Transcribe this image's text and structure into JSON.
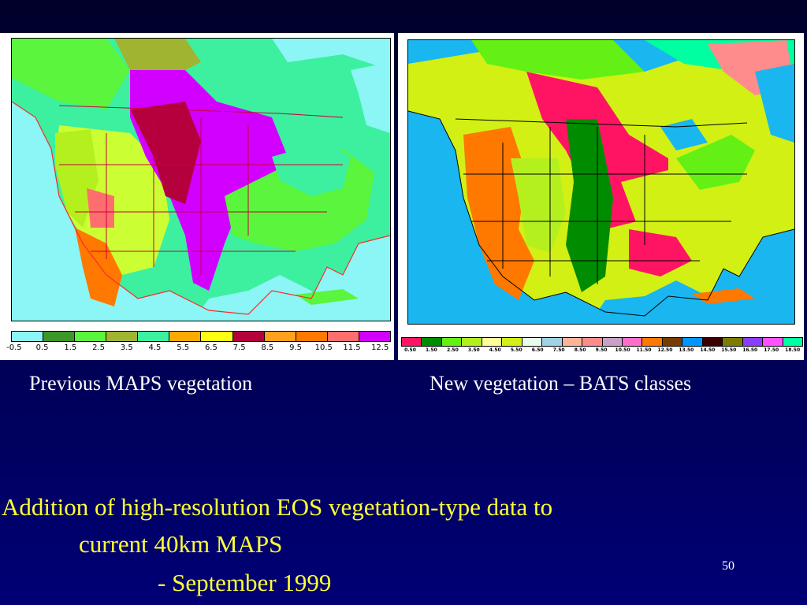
{
  "left_map": {
    "caption": "Previous MAPS vegetation",
    "legend_colors": [
      "#8cf5f5",
      "#3c9628",
      "#5af53c",
      "#a0b432",
      "#3cf0a0",
      "#faaa00",
      "#ffff14",
      "#b4003c",
      "#ffa01e",
      "#ff7800",
      "#ff6e6e",
      "#d200ff"
    ],
    "legend_ticks": [
      "-0.5",
      "0.5",
      "1.5",
      "2.5",
      "3.5",
      "4.5",
      "5.5",
      "6.5",
      "7.5",
      "8.5",
      "9.5",
      "10.5",
      "11.5",
      "12.5"
    ]
  },
  "right_map": {
    "caption": "New vegetation – BATS classes",
    "legend_colors": [
      "#ff1464",
      "#008c00",
      "#64f014",
      "#b4f01e",
      "#ffff96",
      "#d2f014",
      "#e6ffe6",
      "#a0d2e6",
      "#ffb496",
      "#ff8c8c",
      "#c8a0c8",
      "#ff6ec8",
      "#ff7800",
      "#783c00",
      "#0096ff",
      "#3c0000",
      "#7c7c00",
      "#8c3cff",
      "#ff50ff",
      "#00ffa0"
    ],
    "legend_ticks": [
      "0.50",
      "1.50",
      "2.50",
      "3.50",
      "4.50",
      "5.50",
      "6.50",
      "7.50",
      "8.50",
      "9.50",
      "10.50",
      "11.50",
      "12.50",
      "13.50",
      "14.50",
      "15.50",
      "16.50",
      "17.50",
      "18.50"
    ]
  },
  "text": {
    "line1": "Addition of high-resolution EOS vegetation-type data to",
    "line2": "current 40km MAPS",
    "line3": "- September 1999",
    "page_number": "50"
  }
}
